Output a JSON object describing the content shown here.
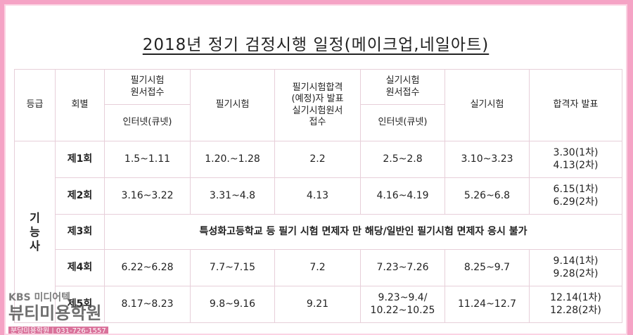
{
  "title": "2018년 정기 검정시행 일정(메이크업,네일아트)",
  "header": {
    "grade": "등급",
    "round": "회별",
    "written_apply": "필기시험\n원서접수",
    "written_apply_sub": "인터넷(큐넷)",
    "written_exam": "필기시험",
    "written_result": "필기시험합격\n(예정)자 발표\n실기시험원서\n접수",
    "practical_apply": "실기시험\n원서접수",
    "practical_apply_sub": "인터넷(큐넷)",
    "practical_exam": "실기시험",
    "final_result": "합격자 발표"
  },
  "grade": "기\n능\n사",
  "rows": [
    {
      "round": "제1회",
      "cells": [
        "1.5~1.11",
        "1.20.~1.28",
        "2.2",
        "2.5~2.8",
        "3.10~3.23",
        "3.30(1차)\n4.13(2차)"
      ]
    },
    {
      "round": "제2회",
      "cells": [
        "3.16~3.22",
        "3.31~4.8",
        "4.13",
        "4.16~4.19",
        "5.26~6.8",
        "6.15(1차)\n6.29(2차)"
      ]
    },
    {
      "round": "제3회",
      "note": "특성화고등학교 등 필기 시험 면제자 만 해당/일반인 필기시험 면제자 응시 불가"
    },
    {
      "round": "제4회",
      "cells": [
        "6.22~6.28",
        "7.7~7.15",
        "7.2",
        "7.23~7.26",
        "8.25~9.7",
        "9.14(1차)\n9.28(2차)"
      ]
    },
    {
      "round": "제5회",
      "cells": [
        "8.17~8.23",
        "9.8~9.16",
        "9.21",
        "9.23~9.4/\n10.22~10.25",
        "11.24~12.7",
        "12.14(1차)\n12.28(2차)"
      ]
    }
  ],
  "watermark": {
    "line1": "KBS 미디어텍",
    "line2": "뷰티미용학원",
    "line3": "분당미용학원 | 031-726-1557"
  }
}
